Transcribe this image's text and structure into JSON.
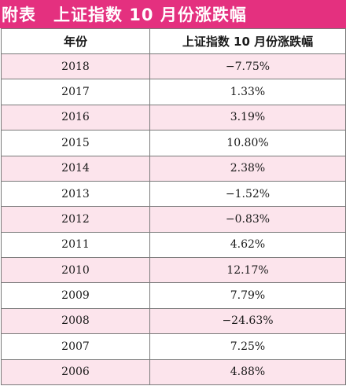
{
  "title": {
    "tag": "附表",
    "text": "上证指数 10 月份涨跌幅"
  },
  "colors": {
    "title_bg": "#e4307f",
    "stripe": "#fce4ec"
  },
  "table": {
    "headers": [
      "年份",
      "上证指数 10 月份涨跌幅"
    ],
    "rows": [
      [
        "2018",
        "−7.75%"
      ],
      [
        "2017",
        "1.33%"
      ],
      [
        "2016",
        "3.19%"
      ],
      [
        "2015",
        "10.80%"
      ],
      [
        "2014",
        "2.38%"
      ],
      [
        "2013",
        "−1.52%"
      ],
      [
        "2012",
        "−0.83%"
      ],
      [
        "2011",
        "4.62%"
      ],
      [
        "2010",
        "12.17%"
      ],
      [
        "2009",
        "7.79%"
      ],
      [
        "2008",
        "−24.63%"
      ],
      [
        "2007",
        "7.25%"
      ],
      [
        "2006",
        "4.88%"
      ]
    ]
  }
}
